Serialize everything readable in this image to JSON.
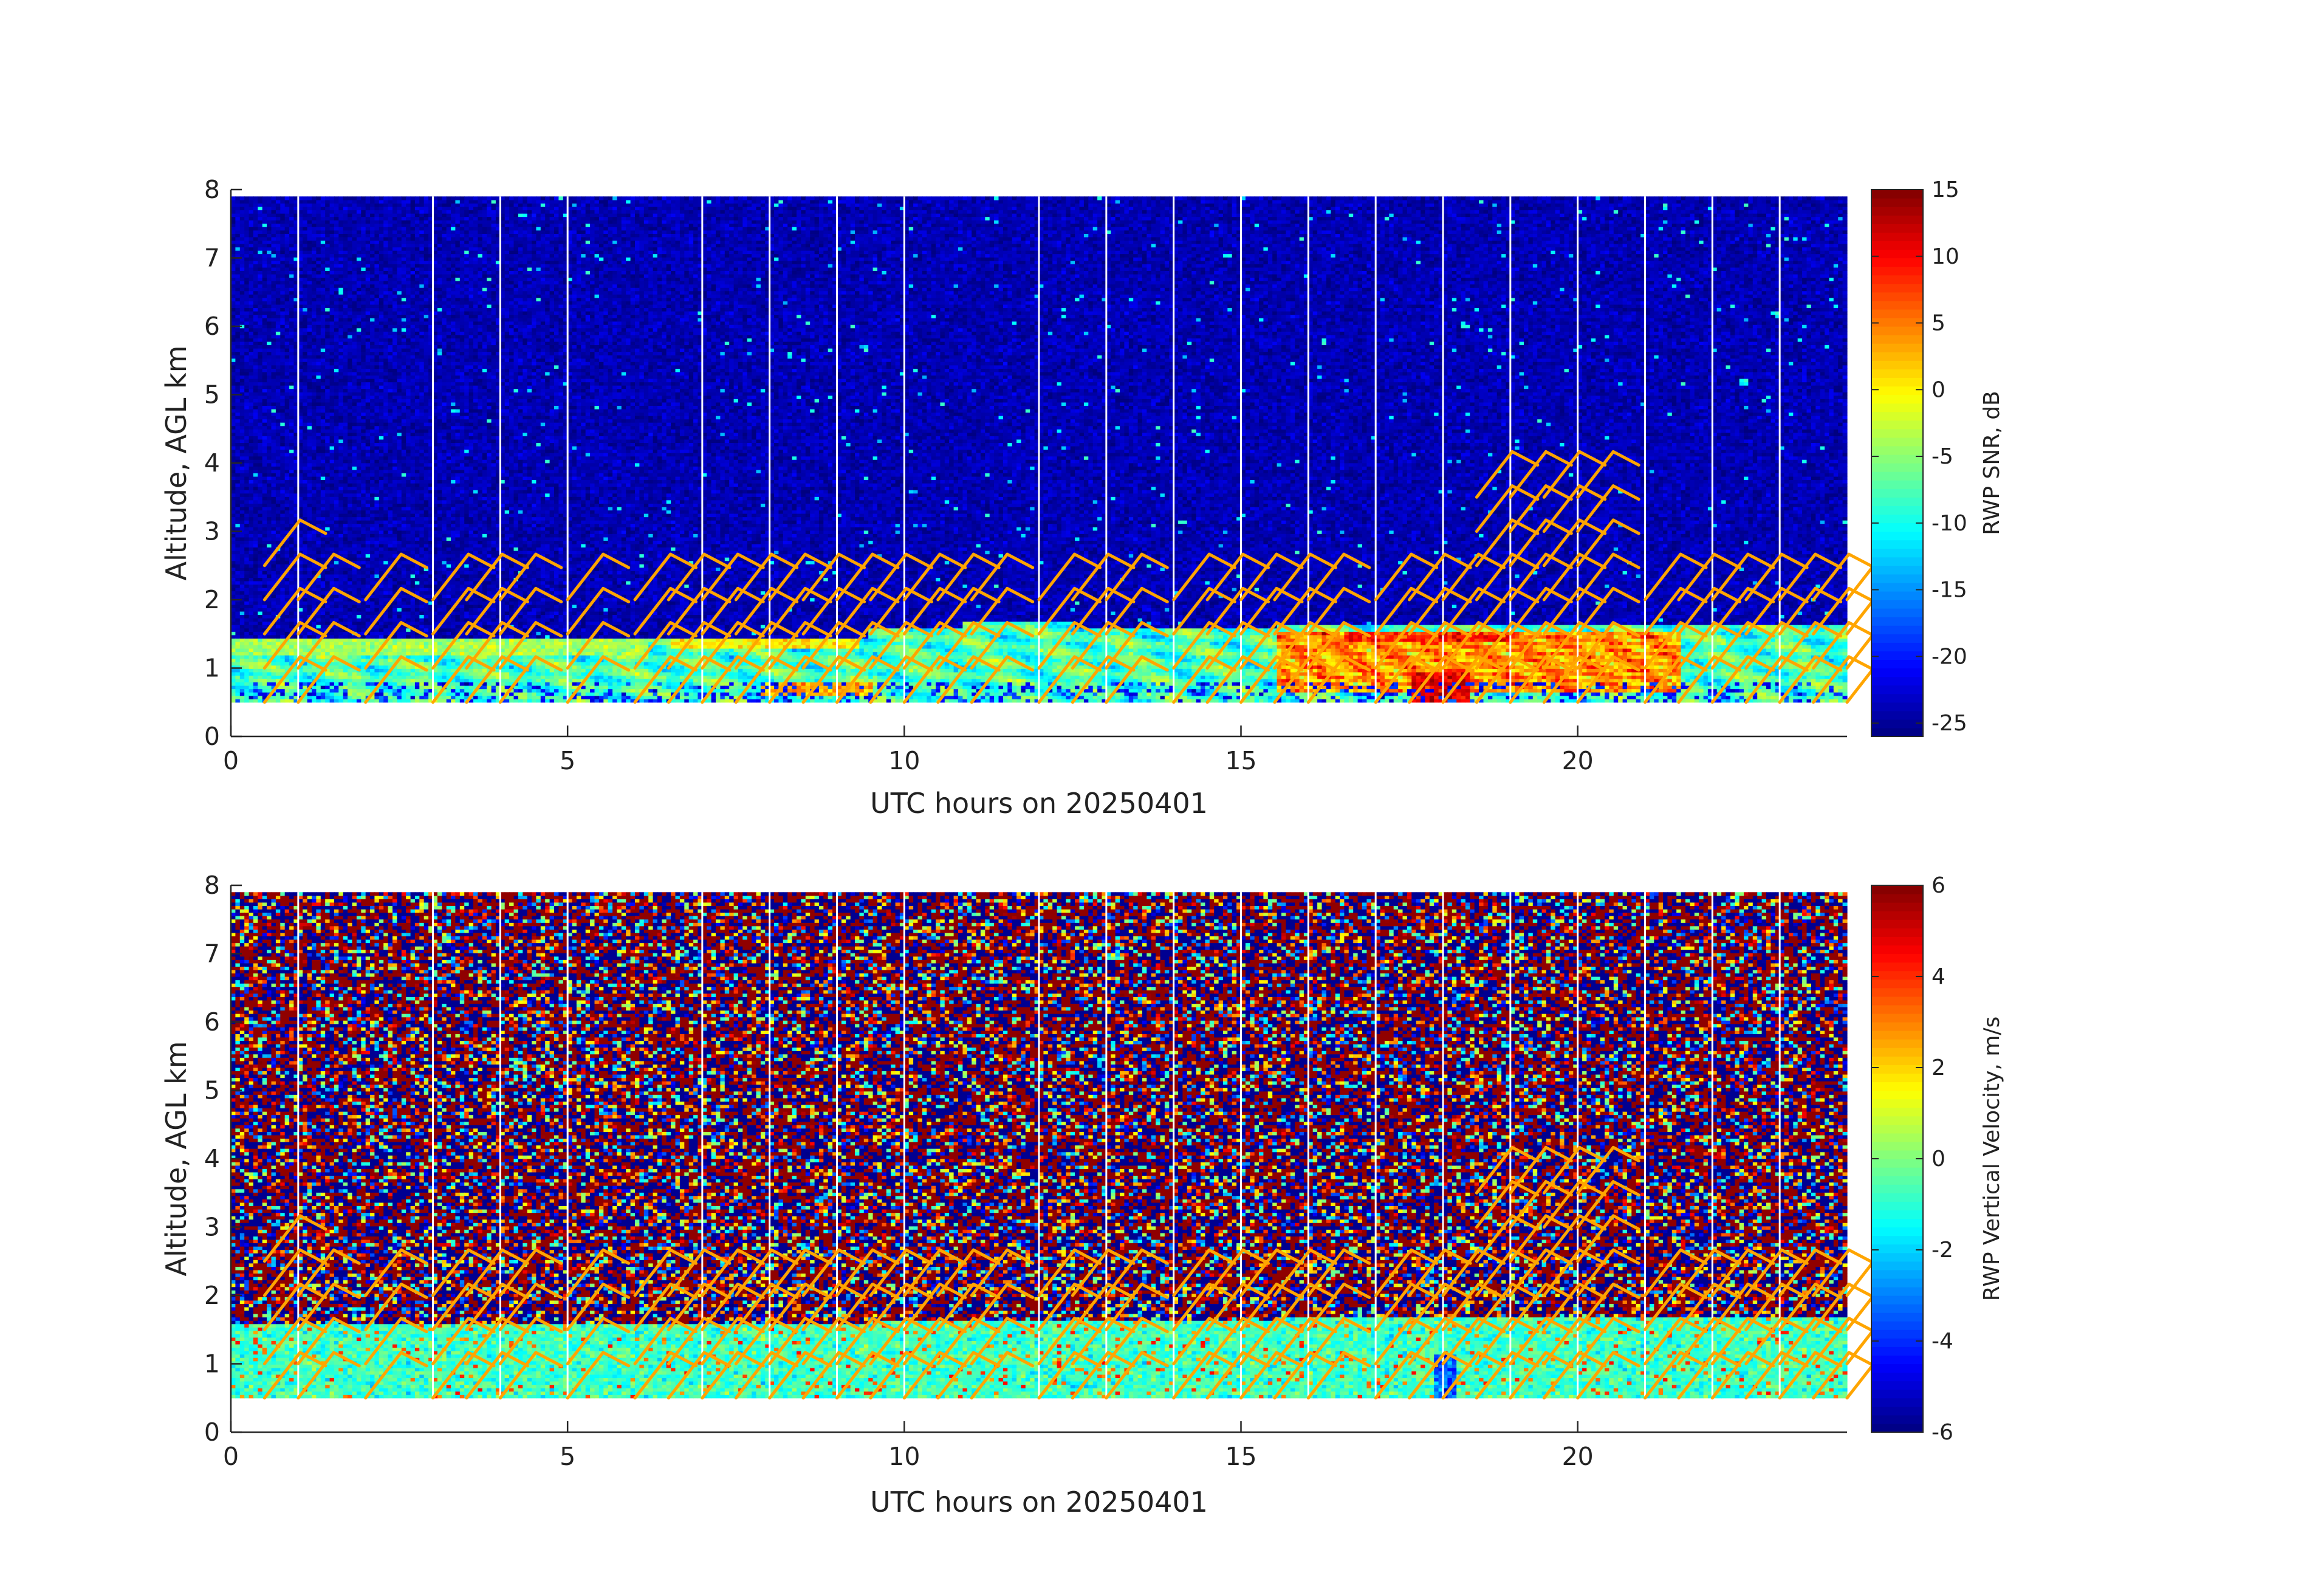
{
  "chart_data": [
    {
      "type": "heatmap",
      "xlabel": "UTC hours on 20250401",
      "ylabel": "Altitude, AGL km",
      "xlim": [
        0,
        24
      ],
      "ylim": [
        0,
        8
      ],
      "xticks": [
        "0",
        "5",
        "10",
        "15",
        "20"
      ],
      "yticks": [
        "0",
        "1",
        "2",
        "3",
        "4",
        "5",
        "6",
        "7",
        "8"
      ],
      "data_altitude_range_km": [
        0.5,
        7.9
      ],
      "gap_lines_hours": [
        1,
        3,
        4,
        5,
        7,
        8,
        9,
        10,
        12,
        13,
        14,
        15,
        16,
        17,
        18,
        19,
        20,
        21,
        22,
        23
      ],
      "colorbar": {
        "label": "RWP SNR, dB",
        "range": [
          -26,
          15
        ],
        "ticks": [
          "15",
          "10",
          "5",
          "0",
          "-5",
          "-10",
          "-15",
          "-20",
          "-25"
        ],
        "colormap": "jet"
      },
      "wind_barbs": {
        "color": "#ffa500",
        "times_hours": [
          0.5,
          1.0,
          2.0,
          3.0,
          3.5,
          4.0,
          5.0,
          6.0,
          6.5,
          7.0,
          7.5,
          8.0,
          8.5,
          9.0,
          9.5,
          10.0,
          10.5,
          11.0,
          12.0,
          12.5,
          13.0,
          14.0,
          14.5,
          15.0,
          15.5,
          16.0,
          17.0,
          17.5,
          18.0,
          18.5,
          19.0,
          19.5,
          20.0,
          21.0,
          21.5,
          22.0,
          22.5,
          23.0,
          23.5,
          24.0
        ],
        "altitudes_km": [
          0.5,
          1.0,
          1.5,
          2.0,
          2.5,
          3.0,
          3.5
        ]
      }
    },
    {
      "type": "heatmap",
      "xlabel": "UTC hours on 20250401",
      "ylabel": "Altitude, AGL km",
      "xlim": [
        0,
        24
      ],
      "ylim": [
        0,
        8
      ],
      "xticks": [
        "0",
        "5",
        "10",
        "15",
        "20"
      ],
      "yticks": [
        "0",
        "1",
        "2",
        "3",
        "4",
        "5",
        "6",
        "7",
        "8"
      ],
      "data_altitude_range_km": [
        0.5,
        7.9
      ],
      "gap_lines_hours": [
        1,
        3,
        4,
        5,
        7,
        8,
        9,
        10,
        12,
        13,
        14,
        15,
        16,
        17,
        18,
        19,
        20,
        21,
        22,
        23
      ],
      "colorbar": {
        "label": "RWP Vertical Velocity, m/s",
        "range": [
          -6,
          6
        ],
        "ticks": [
          "6",
          "4",
          "2",
          "0",
          "-2",
          "-4",
          "-6"
        ],
        "colormap": "jet"
      },
      "wind_barbs": {
        "color": "#ffa500",
        "times_hours": [
          0.5,
          1.0,
          2.0,
          3.0,
          3.5,
          4.0,
          5.0,
          6.0,
          6.5,
          7.0,
          7.5,
          8.0,
          8.5,
          9.0,
          9.5,
          10.0,
          10.5,
          11.0,
          12.0,
          12.5,
          13.0,
          14.0,
          14.5,
          15.0,
          15.5,
          16.0,
          17.0,
          17.5,
          18.0,
          18.5,
          19.0,
          19.5,
          20.0,
          21.0,
          21.5,
          22.0,
          22.5,
          23.0,
          23.5,
          24.0
        ],
        "altitudes_km": [
          0.5,
          1.0,
          1.5,
          2.0,
          2.5,
          3.0,
          3.5
        ]
      }
    }
  ]
}
